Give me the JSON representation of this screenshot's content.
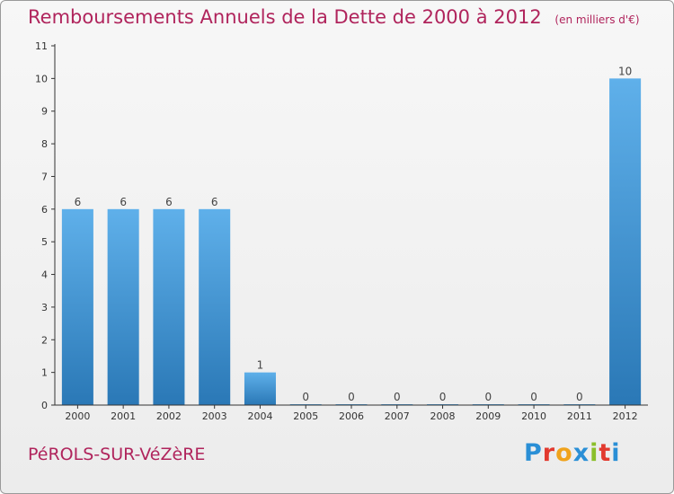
{
  "header": {
    "title": "Remboursements Annuels de la Dette de 2000 à 2012",
    "unit": "(en milliers d'€)"
  },
  "footer": {
    "commune": "PéROLS-SUR-VéZèRE",
    "brand": "Proxiti"
  },
  "colors": {
    "title": "#b0245c",
    "bar_top": "#5fb0ea",
    "bar_bottom": "#2a78b6",
    "axis": "#333333"
  },
  "chart_data": {
    "type": "bar",
    "categories": [
      "2000",
      "2001",
      "2002",
      "2003",
      "2004",
      "2005",
      "2006",
      "2007",
      "2008",
      "2009",
      "2010",
      "2011",
      "2012"
    ],
    "values": [
      6,
      6,
      6,
      6,
      1,
      0,
      0,
      0,
      0,
      0,
      0,
      0,
      10
    ],
    "data_labels": [
      "6",
      "6",
      "6",
      "6",
      "1",
      "0",
      "0",
      "0",
      "0",
      "0",
      "0",
      "0",
      "10"
    ],
    "yticks": [
      0,
      1,
      2,
      3,
      4,
      5,
      6,
      7,
      8,
      9,
      10,
      11
    ],
    "ylim": [
      0,
      11
    ],
    "grid": false,
    "legend": "none"
  }
}
